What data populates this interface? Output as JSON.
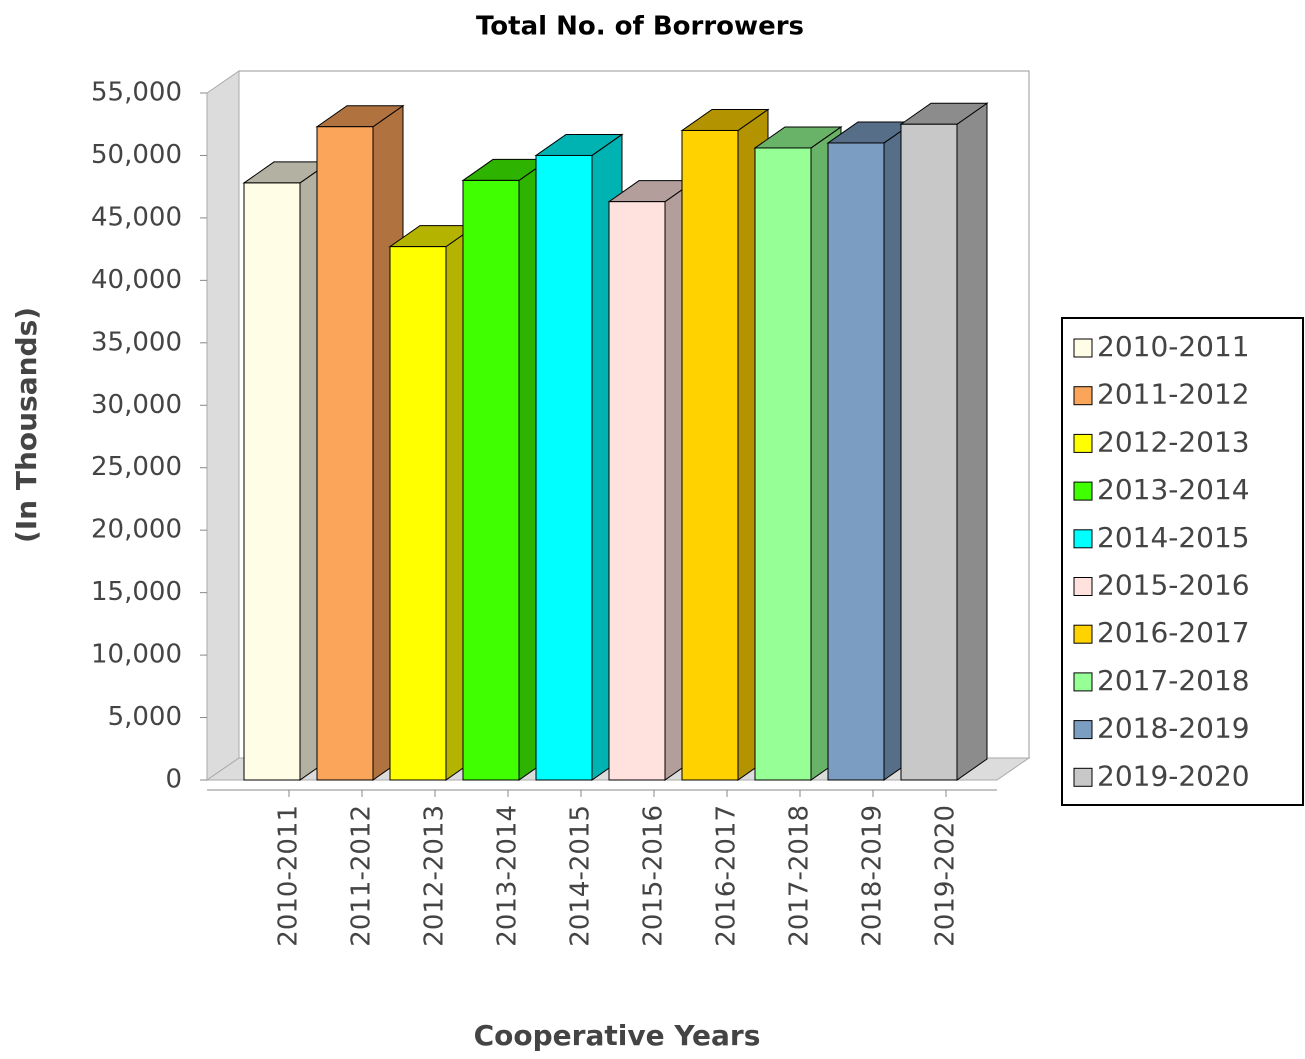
{
  "chart_data": {
    "type": "bar3d",
    "title": "Total No. of Borrowers",
    "x_label": "Cooperative Years",
    "y_label": "(In Thousands)",
    "categories": [
      "2010-2011",
      "2011-2012",
      "2012-2013",
      "2013-2014",
      "2014-2015",
      "2015-2016",
      "2016-2017",
      "2017-2018",
      "2018-2019",
      "2019-2020"
    ],
    "values": [
      47800,
      52300,
      42700,
      48000,
      50000,
      46300,
      52000,
      50600,
      51000,
      52500
    ],
    "colors": [
      "#fffde6",
      "#fba55a",
      "#ffff00",
      "#40ff00",
      "#00ffff",
      "#ffe1de",
      "#ffd200",
      "#96ff96",
      "#7b9dc2",
      "#c8c8c8"
    ],
    "ylim": [
      0,
      55000
    ],
    "yticks": [
      {
        "value": 0,
        "label": "0"
      },
      {
        "value": 5000,
        "label": "5,000"
      },
      {
        "value": 10000,
        "label": "10,000"
      },
      {
        "value": 15000,
        "label": "15,000"
      },
      {
        "value": 20000,
        "label": "20,000"
      },
      {
        "value": 25000,
        "label": "25,000"
      },
      {
        "value": 30000,
        "label": "30,000"
      },
      {
        "value": 35000,
        "label": "35,000"
      },
      {
        "value": 40000,
        "label": "40,000"
      },
      {
        "value": 45000,
        "label": "45,000"
      },
      {
        "value": 50000,
        "label": "50,000"
      },
      {
        "value": 55000,
        "label": "55,000"
      }
    ],
    "legend": "right"
  }
}
